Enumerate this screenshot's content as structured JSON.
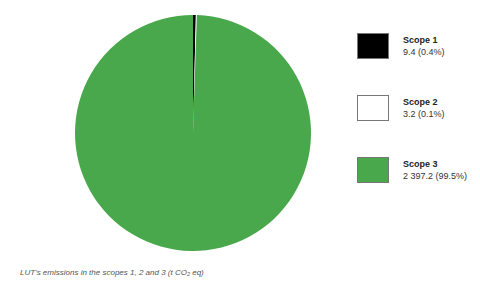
{
  "chart_data": {
    "type": "pie",
    "title": "LUT's emissions in the scopes 1, 2 and 3 (t CO₂ eq)",
    "categories": [
      "Scope 1",
      "Scope 2",
      "Scope 3"
    ],
    "values": [
      9.4,
      3.2,
      2397.2
    ],
    "value_labels": [
      "9.4 (0.4%)",
      "3.2 (0.1%)",
      "2 397.2 (99.5%)"
    ],
    "colors": [
      "#000000",
      "#ffffff",
      "#48a84b"
    ],
    "legend": "top-right"
  }
}
